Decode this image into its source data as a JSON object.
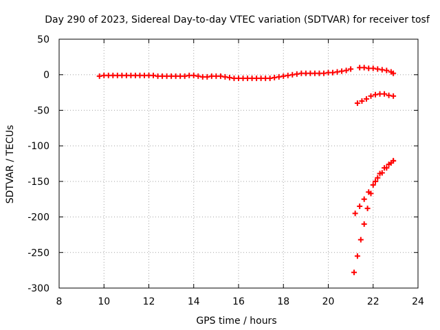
{
  "chart_data": {
    "type": "scatter",
    "title": "Day 290 of 2023, Sidereal Day-to-day VTEC variation (SDTVAR) for receiver tosf",
    "xlabel": "GPS time / hours",
    "ylabel": "SDTVAR / TECUs",
    "xlim": [
      8,
      24
    ],
    "ylim": [
      -300,
      50
    ],
    "xticks": [
      8,
      10,
      12,
      14,
      16,
      18,
      20,
      22,
      24
    ],
    "yticks": [
      -300,
      -250,
      -200,
      -150,
      -100,
      -50,
      0,
      50
    ],
    "grid": true,
    "marker": "plus",
    "color": "#ff0000",
    "series": [
      {
        "name": "",
        "points": [
          [
            9.8,
            -2
          ],
          [
            10.0,
            -1
          ],
          [
            10.2,
            -1
          ],
          [
            10.4,
            -1
          ],
          [
            10.6,
            -1
          ],
          [
            10.8,
            -1
          ],
          [
            11.0,
            -1
          ],
          [
            11.2,
            -1
          ],
          [
            11.4,
            -1
          ],
          [
            11.6,
            -1
          ],
          [
            11.8,
            -1
          ],
          [
            12.0,
            -1
          ],
          [
            12.2,
            -1
          ],
          [
            12.4,
            -2
          ],
          [
            12.6,
            -2
          ],
          [
            12.8,
            -2
          ],
          [
            13.0,
            -2
          ],
          [
            13.2,
            -2
          ],
          [
            13.4,
            -2
          ],
          [
            13.6,
            -2
          ],
          [
            13.8,
            -1
          ],
          [
            14.0,
            -1
          ],
          [
            14.2,
            -2
          ],
          [
            14.4,
            -3
          ],
          [
            14.6,
            -3
          ],
          [
            14.8,
            -2
          ],
          [
            15.0,
            -2
          ],
          [
            15.2,
            -2
          ],
          [
            15.4,
            -3
          ],
          [
            15.6,
            -4
          ],
          [
            15.8,
            -5
          ],
          [
            16.0,
            -5
          ],
          [
            16.2,
            -5
          ],
          [
            16.4,
            -5
          ],
          [
            16.6,
            -5
          ],
          [
            16.8,
            -5
          ],
          [
            17.0,
            -5
          ],
          [
            17.2,
            -5
          ],
          [
            17.4,
            -5
          ],
          [
            17.6,
            -4
          ],
          [
            17.8,
            -3
          ],
          [
            18.0,
            -2
          ],
          [
            18.2,
            -1
          ],
          [
            18.4,
            0
          ],
          [
            18.6,
            1
          ],
          [
            18.8,
            2
          ],
          [
            19.0,
            2
          ],
          [
            19.2,
            2
          ],
          [
            19.4,
            2
          ],
          [
            19.6,
            2
          ],
          [
            19.8,
            2
          ],
          [
            20.0,
            3
          ],
          [
            20.2,
            3
          ],
          [
            20.4,
            4
          ],
          [
            20.6,
            5
          ],
          [
            20.8,
            6
          ],
          [
            21.0,
            8
          ],
          [
            21.4,
            10
          ],
          [
            21.6,
            10
          ],
          [
            21.8,
            9
          ],
          [
            22.0,
            9
          ],
          [
            22.2,
            8
          ],
          [
            22.4,
            7
          ],
          [
            22.6,
            6
          ],
          [
            22.8,
            4
          ],
          [
            22.9,
            2
          ],
          [
            21.3,
            -40
          ],
          [
            21.5,
            -37
          ],
          [
            21.7,
            -34
          ],
          [
            21.9,
            -30
          ],
          [
            22.1,
            -28
          ],
          [
            22.3,
            -27
          ],
          [
            22.5,
            -27
          ],
          [
            22.7,
            -29
          ],
          [
            22.9,
            -30
          ],
          [
            21.2,
            -195
          ],
          [
            21.4,
            -185
          ],
          [
            21.6,
            -175
          ],
          [
            21.8,
            -165
          ],
          [
            22.0,
            -155
          ],
          [
            22.2,
            -145
          ],
          [
            22.4,
            -138
          ],
          [
            22.6,
            -131
          ],
          [
            22.8,
            -124
          ],
          [
            22.9,
            -121
          ],
          [
            21.15,
            -278
          ],
          [
            21.3,
            -255
          ],
          [
            21.45,
            -232
          ],
          [
            21.6,
            -210
          ],
          [
            21.75,
            -188
          ],
          [
            21.9,
            -167
          ],
          [
            22.1,
            -150
          ],
          [
            22.3,
            -139
          ],
          [
            22.5,
            -131
          ],
          [
            22.7,
            -126
          ],
          [
            22.9,
            -121
          ]
        ]
      }
    ]
  }
}
